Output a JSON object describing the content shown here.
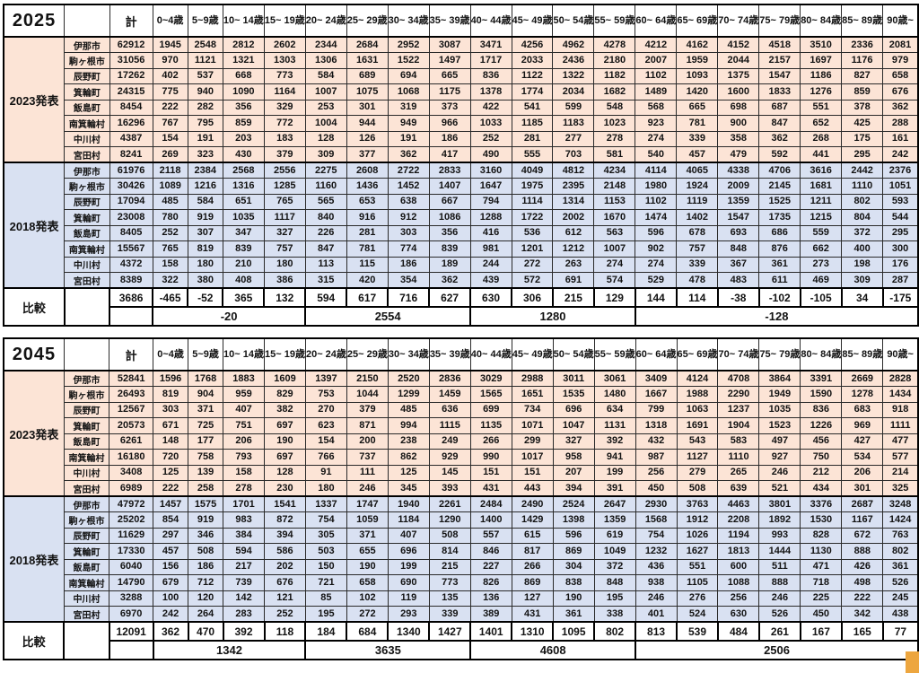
{
  "colors": {
    "peach": "#FCE4D6",
    "blue": "#D9E1F2",
    "marker": "#EDA63F",
    "border": "#000000"
  },
  "columns": {
    "total_label": "計",
    "age_labels": [
      "0~4歳",
      "5~9歳",
      "10~\n14歳",
      "15~\n19歳",
      "20~\n24歳",
      "25~\n29歳",
      "30~\n34歳",
      "35~\n39歳",
      "40~\n44歳",
      "45~\n49歳",
      "50~\n54歳",
      "55~\n59歳",
      "60~\n64歳",
      "65~\n69歳",
      "70~\n74歳",
      "75~\n79歳",
      "80~\n84歳",
      "85~\n89歳",
      "90歳~"
    ]
  },
  "tables": [
    {
      "year": "2025",
      "sections": [
        {
          "label": "2023発表",
          "style": "peach",
          "rows": [
            {
              "name": "伊那市",
              "values": [
                62912,
                1945,
                2548,
                2812,
                2602,
                2344,
                2684,
                2952,
                3087,
                3471,
                4256,
                4962,
                4278,
                4212,
                4162,
                4152,
                4518,
                3510,
                2336,
                2081
              ]
            },
            {
              "name": "駒ヶ根市",
              "values": [
                31056,
                970,
                1121,
                1321,
                1303,
                1306,
                1631,
                1522,
                1497,
                1717,
                2033,
                2436,
                2180,
                2007,
                1959,
                2044,
                2157,
                1697,
                1176,
                979
              ]
            },
            {
              "name": "辰野町",
              "values": [
                17262,
                402,
                537,
                668,
                773,
                584,
                689,
                694,
                665,
                836,
                1122,
                1322,
                1182,
                1102,
                1093,
                1375,
                1547,
                1186,
                827,
                658
              ]
            },
            {
              "name": "箕輪町",
              "values": [
                24315,
                775,
                940,
                1090,
                1164,
                1007,
                1075,
                1068,
                1175,
                1378,
                1774,
                2034,
                1682,
                1489,
                1420,
                1600,
                1833,
                1276,
                859,
                676
              ]
            },
            {
              "name": "飯島町",
              "values": [
                8454,
                222,
                282,
                356,
                329,
                253,
                301,
                319,
                373,
                422,
                541,
                599,
                548,
                568,
                665,
                698,
                687,
                551,
                378,
                362
              ]
            },
            {
              "name": "南箕輪村",
              "values": [
                16296,
                767,
                795,
                859,
                772,
                1004,
                944,
                949,
                966,
                1033,
                1185,
                1183,
                1023,
                923,
                781,
                900,
                847,
                652,
                425,
                288
              ]
            },
            {
              "name": "中川村",
              "values": [
                4387,
                154,
                191,
                203,
                183,
                128,
                126,
                191,
                186,
                252,
                281,
                277,
                278,
                274,
                339,
                358,
                362,
                268,
                175,
                161
              ]
            },
            {
              "name": "宮田村",
              "values": [
                8241,
                269,
                323,
                430,
                379,
                309,
                377,
                362,
                417,
                490,
                555,
                703,
                581,
                540,
                457,
                479,
                592,
                441,
                295,
                242
              ]
            }
          ]
        },
        {
          "label": "2018発表",
          "style": "blue",
          "rows": [
            {
              "name": "伊那市",
              "values": [
                61976,
                2118,
                2384,
                2568,
                2556,
                2275,
                2608,
                2722,
                2833,
                3160,
                4049,
                4812,
                4234,
                4114,
                4065,
                4338,
                4706,
                3616,
                2442,
                2376
              ]
            },
            {
              "name": "駒ヶ根市",
              "values": [
                30426,
                1089,
                1216,
                1316,
                1285,
                1160,
                1436,
                1452,
                1407,
                1647,
                1975,
                2395,
                2148,
                1980,
                1924,
                2009,
                2145,
                1681,
                1110,
                1051
              ]
            },
            {
              "name": "辰野町",
              "values": [
                17094,
                485,
                584,
                651,
                765,
                565,
                653,
                638,
                667,
                794,
                1114,
                1314,
                1153,
                1102,
                1119,
                1359,
                1525,
                1211,
                802,
                593
              ]
            },
            {
              "name": "箕輪町",
              "values": [
                23008,
                780,
                919,
                1035,
                1117,
                840,
                916,
                912,
                1086,
                1288,
                1722,
                2002,
                1670,
                1474,
                1402,
                1547,
                1735,
                1215,
                804,
                544
              ]
            },
            {
              "name": "飯島町",
              "values": [
                8405,
                252,
                307,
                347,
                327,
                226,
                281,
                303,
                356,
                416,
                536,
                612,
                563,
                596,
                678,
                693,
                686,
                559,
                372,
                295
              ]
            },
            {
              "name": "南箕輪村",
              "values": [
                15567,
                765,
                819,
                839,
                757,
                847,
                781,
                774,
                839,
                981,
                1201,
                1212,
                1007,
                902,
                757,
                848,
                876,
                662,
                400,
                300
              ]
            },
            {
              "name": "中川村",
              "values": [
                4372,
                158,
                180,
                210,
                180,
                113,
                115,
                186,
                189,
                244,
                272,
                263,
                274,
                274,
                339,
                367,
                361,
                273,
                198,
                176
              ]
            },
            {
              "name": "宮田村",
              "values": [
                8389,
                322,
                380,
                408,
                386,
                315,
                420,
                354,
                362,
                439,
                572,
                691,
                574,
                529,
                478,
                483,
                611,
                469,
                309,
                287
              ]
            }
          ]
        }
      ],
      "compare": {
        "label": "比較",
        "values": [
          3686,
          -465,
          -52,
          365,
          132,
          594,
          617,
          716,
          627,
          630,
          306,
          215,
          129,
          144,
          114,
          -38,
          -102,
          -105,
          34,
          -175
        ],
        "groups": [
          {
            "value": -20,
            "span": 4
          },
          {
            "value": 2554,
            "span": 4
          },
          {
            "value": 1280,
            "span": 4
          },
          {
            "value": -128,
            "span": 7
          }
        ]
      }
    },
    {
      "year": "2045",
      "sections": [
        {
          "label": "2023発表",
          "style": "peach",
          "rows": [
            {
              "name": "伊那市",
              "values": [
                52841,
                1596,
                1768,
                1883,
                1609,
                1397,
                2150,
                2520,
                2836,
                3029,
                2988,
                3011,
                3061,
                3409,
                4124,
                4708,
                3864,
                3391,
                2669,
                2828
              ]
            },
            {
              "name": "駒ヶ根市",
              "values": [
                26493,
                819,
                904,
                959,
                829,
                753,
                1044,
                1299,
                1459,
                1565,
                1651,
                1535,
                1480,
                1667,
                1988,
                2290,
                1949,
                1590,
                1278,
                1434
              ]
            },
            {
              "name": "辰野町",
              "values": [
                12567,
                303,
                371,
                407,
                382,
                270,
                379,
                485,
                636,
                699,
                734,
                696,
                634,
                799,
                1063,
                1237,
                1035,
                836,
                683,
                918
              ]
            },
            {
              "name": "箕輪町",
              "values": [
                20573,
                671,
                725,
                751,
                697,
                623,
                871,
                994,
                1115,
                1135,
                1071,
                1047,
                1131,
                1318,
                1691,
                1904,
                1523,
                1226,
                969,
                1111
              ]
            },
            {
              "name": "飯島町",
              "values": [
                6261,
                148,
                177,
                206,
                190,
                154,
                200,
                238,
                249,
                266,
                299,
                327,
                392,
                432,
                543,
                583,
                497,
                456,
                427,
                477
              ]
            },
            {
              "name": "南箕輪村",
              "values": [
                16180,
                720,
                758,
                793,
                697,
                766,
                737,
                862,
                929,
                990,
                1017,
                958,
                941,
                987,
                1127,
                1110,
                927,
                750,
                534,
                577
              ]
            },
            {
              "name": "中川村",
              "values": [
                3408,
                125,
                139,
                158,
                128,
                91,
                111,
                125,
                145,
                151,
                151,
                207,
                199,
                256,
                279,
                265,
                246,
                212,
                206,
                214
              ]
            },
            {
              "name": "宮田村",
              "values": [
                6989,
                222,
                258,
                278,
                230,
                180,
                246,
                345,
                393,
                431,
                443,
                394,
                391,
                450,
                508,
                639,
                521,
                434,
                301,
                325
              ]
            }
          ]
        },
        {
          "label": "2018発表",
          "style": "blue",
          "rows": [
            {
              "name": "伊那市",
              "values": [
                47972,
                1457,
                1575,
                1701,
                1541,
                1337,
                1747,
                1940,
                2261,
                2484,
                2490,
                2524,
                2647,
                2930,
                3763,
                4463,
                3801,
                3376,
                2687,
                3248
              ]
            },
            {
              "name": "駒ヶ根市",
              "values": [
                25202,
                854,
                919,
                983,
                872,
                754,
                1059,
                1184,
                1290,
                1400,
                1429,
                1398,
                1359,
                1568,
                1912,
                2208,
                1892,
                1530,
                1167,
                1424
              ]
            },
            {
              "name": "辰野町",
              "values": [
                11629,
                297,
                346,
                384,
                394,
                305,
                371,
                407,
                508,
                557,
                615,
                596,
                619,
                754,
                1026,
                1194,
                993,
                828,
                672,
                763
              ]
            },
            {
              "name": "箕輪町",
              "values": [
                17330,
                457,
                508,
                594,
                586,
                503,
                655,
                696,
                814,
                846,
                817,
                869,
                1049,
                1232,
                1627,
                1813,
                1444,
                1130,
                888,
                802
              ]
            },
            {
              "name": "飯島町",
              "values": [
                6040,
                156,
                186,
                217,
                202,
                150,
                190,
                199,
                215,
                227,
                266,
                304,
                372,
                436,
                551,
                600,
                511,
                471,
                426,
                361
              ]
            },
            {
              "name": "南箕輪村",
              "values": [
                14790,
                679,
                712,
                739,
                676,
                721,
                658,
                690,
                773,
                826,
                869,
                838,
                848,
                938,
                1105,
                1088,
                888,
                718,
                498,
                526
              ]
            },
            {
              "name": "中川村",
              "values": [
                3288,
                100,
                120,
                142,
                121,
                85,
                102,
                119,
                135,
                136,
                127,
                190,
                195,
                246,
                276,
                256,
                246,
                225,
                222,
                245
              ]
            },
            {
              "name": "宮田村",
              "values": [
                6970,
                242,
                264,
                283,
                252,
                195,
                272,
                293,
                339,
                389,
                431,
                361,
                338,
                401,
                524,
                630,
                526,
                450,
                342,
                438
              ]
            }
          ]
        }
      ],
      "compare": {
        "label": "比較",
        "values": [
          12091,
          362,
          470,
          392,
          118,
          184,
          684,
          1340,
          1427,
          1401,
          1310,
          1095,
          802,
          813,
          539,
          484,
          261,
          167,
          165,
          77
        ],
        "groups": [
          {
            "value": 1342,
            "span": 4
          },
          {
            "value": 3635,
            "span": 4
          },
          {
            "value": 4608,
            "span": 4
          },
          {
            "value": 2506,
            "span": 7
          }
        ]
      }
    }
  ]
}
